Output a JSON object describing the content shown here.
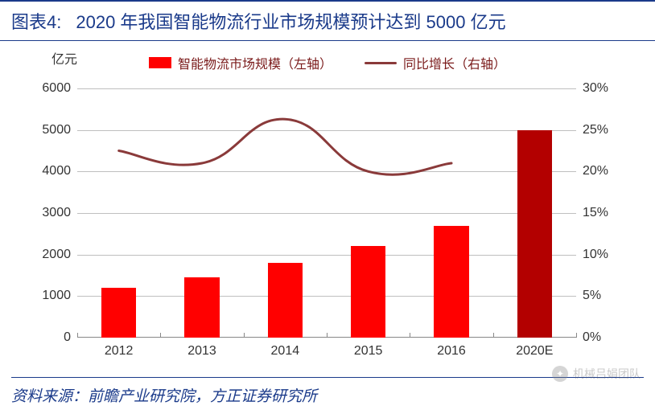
{
  "title_prefix": "图表4:",
  "title_text": "2020 年我国智能物流行业市场规模预计达到 5000 亿元",
  "y_unit_label": "亿元",
  "legend": {
    "bar_label": "智能物流市场规模（左轴）",
    "line_label": "同比增长（右轴）"
  },
  "chart": {
    "type": "bar+line",
    "categories": [
      "2012",
      "2013",
      "2014",
      "2015",
      "2016",
      "2020E"
    ],
    "bar_values": [
      1200,
      1450,
      1800,
      2200,
      2700,
      5000
    ],
    "line_values": [
      22.5,
      21,
      26.3,
      20.0,
      21,
      null
    ],
    "bar_colors": [
      "#ff0000",
      "#ff0000",
      "#ff0000",
      "#ff0000",
      "#ff0000",
      "#b30000"
    ],
    "line_color": "#8a3a3a",
    "line_width": 3,
    "y_left": {
      "min": 0,
      "max": 6000,
      "step": 1000
    },
    "y_right": {
      "min": 0,
      "max": 30,
      "step": 5,
      "suffix": "%"
    },
    "grid_color": "#bfbfbf",
    "background_color": "#ffffff",
    "bar_width_ratio": 0.42,
    "title_color": "#1a3a8a",
    "axis_label_fontsize": 16
  },
  "source_text": "资料来源：前瞻产业研究院，方正证券研究所",
  "watermark_text": "机械吕娟团队"
}
